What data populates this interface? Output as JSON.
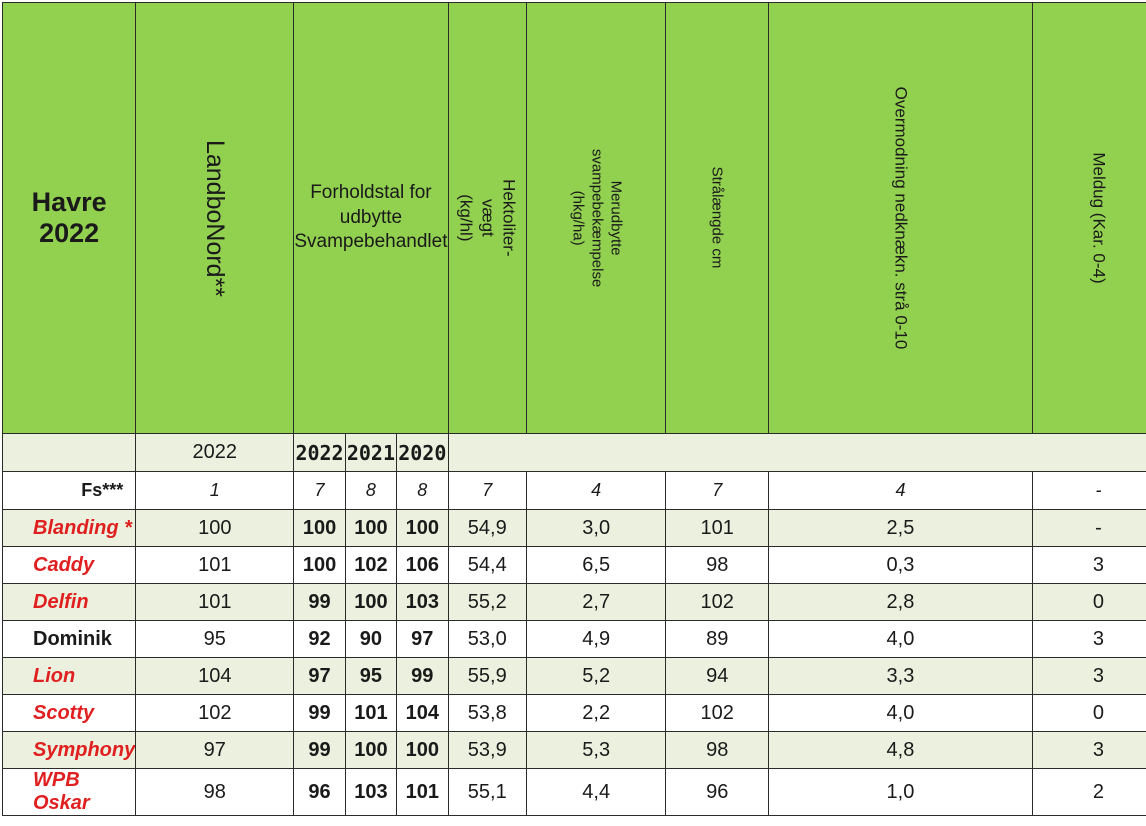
{
  "header": {
    "title": "Havre 2022",
    "landbonord": "LandboNord**",
    "forholdstal_line1": "Forholdstal for",
    "forholdstal_line2": "udbytte",
    "forholdstal_line3": "Svampebehandlet",
    "hektoliter_line1": "Hektoliter-vægt",
    "hektoliter_line2": "(kg/hl)",
    "merudbytte_line1": "Merudbytte",
    "merudbytte_line2": "svampebekæmpelse (hkg/ha)",
    "straalaengde": "Strålængde cm",
    "overmodning": "Overmodning nedknækn. strå 0-10",
    "meldug": "Meldug (Kar. 0-4)"
  },
  "years": {
    "landbonord_year": "2022",
    "y1": "2022",
    "y2": "2021",
    "y3": "2020"
  },
  "fs": {
    "label": "Fs***",
    "values": [
      "1",
      "7",
      "8",
      "8",
      "7",
      "4",
      "7",
      "4",
      "-"
    ]
  },
  "rows": [
    {
      "name": "Blanding *",
      "color": "#e02020",
      "cells": [
        "100",
        "100",
        "100",
        "100",
        "54,9",
        "3,0",
        "101",
        "2,5",
        "-"
      ]
    },
    {
      "name": "Caddy",
      "color": "#e02020",
      "cells": [
        "101",
        "100",
        "102",
        "106",
        "54,4",
        "6,5",
        "98",
        "0,3",
        "3"
      ]
    },
    {
      "name": "Delfin",
      "color": "#e02020",
      "cells": [
        "101",
        "99",
        "100",
        "103",
        "55,2",
        "2,7",
        "102",
        "2,8",
        "0"
      ]
    },
    {
      "name": "Dominik",
      "color": "#1a1a1a",
      "cells": [
        "95",
        "92",
        "90",
        "97",
        "53,0",
        "4,9",
        "89",
        "4,0",
        "3"
      ]
    },
    {
      "name": "Lion",
      "color": "#e02020",
      "cells": [
        "104",
        "97",
        "95",
        "99",
        "55,9",
        "5,2",
        "94",
        "3,3",
        "3"
      ]
    },
    {
      "name": "Scotty",
      "color": "#e02020",
      "cells": [
        "102",
        "99",
        "101",
        "104",
        "53,8",
        "2,2",
        "102",
        "4,0",
        "0"
      ]
    },
    {
      "name": "Symphony",
      "color": "#e02020",
      "cells": [
        "97",
        "99",
        "100",
        "100",
        "53,9",
        "5,3",
        "98",
        "4,8",
        "3"
      ]
    },
    {
      "name": "WPB Oskar",
      "color": "#e02020",
      "cells": [
        "98",
        "96",
        "103",
        "101",
        "55,1",
        "4,4",
        "96",
        "1,0",
        "2"
      ]
    }
  ],
  "colors": {
    "header_green": "#92d050",
    "band_green": "#ebf1de",
    "variety_red": "#e02020"
  }
}
